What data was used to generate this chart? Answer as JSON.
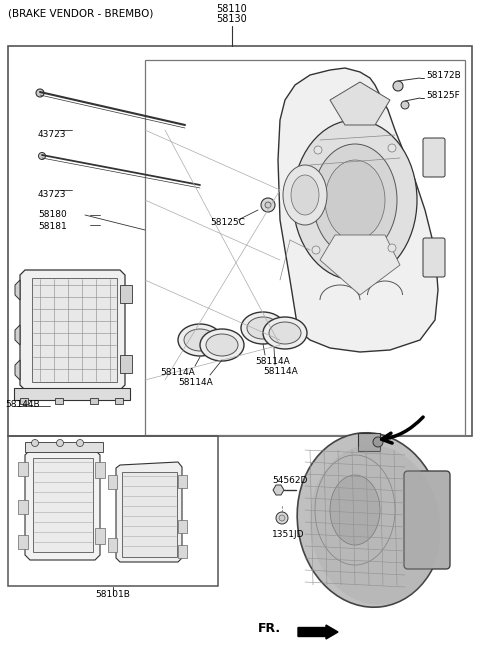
{
  "bg_color": "#ffffff",
  "title": "(BRAKE VENDOR - BREMBO)",
  "parts": {
    "58110": "58110",
    "58130": "58130",
    "43723a": "43723",
    "43723b": "43723",
    "58180": "58180",
    "58181": "58181",
    "58125C": "58125C",
    "58172B": "58172B",
    "58125F": "58125F",
    "58114Aa": "58114A",
    "58114Ab": "58114A",
    "58114Ac": "58114A",
    "58114Ad": "58114A",
    "58144B": "58144B",
    "58101B": "58101B",
    "54562D": "54562D",
    "1351JD": "1351JD",
    "FR": "FR."
  }
}
